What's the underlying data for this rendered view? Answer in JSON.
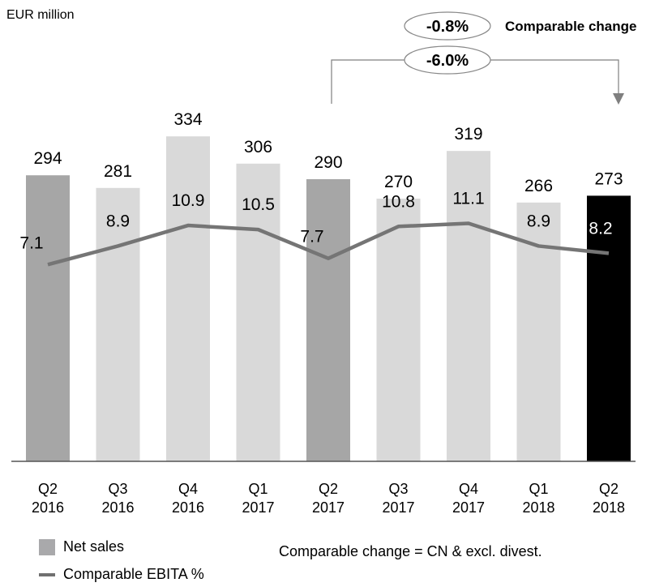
{
  "unit_label": "EUR million",
  "note": "Comparable change = CN & excl. divest.",
  "annotations": {
    "comparable_change_value": "-0.8%",
    "comparable_change_label": "Comparable change",
    "total_change_value": "-6.0%"
  },
  "colors": {
    "highlight_bar": "#a6a6a6",
    "regular_bar": "#d9d9d9",
    "current_bar": "#000000",
    "line": "#757575",
    "axis": "#555555"
  },
  "chart_data": {
    "type": "bar",
    "categories": [
      [
        "Q2",
        "2016"
      ],
      [
        "Q3",
        "2016"
      ],
      [
        "Q4",
        "2016"
      ],
      [
        "Q1",
        "2017"
      ],
      [
        "Q2",
        "2017"
      ],
      [
        "Q3",
        "2017"
      ],
      [
        "Q4",
        "2017"
      ],
      [
        "Q1",
        "2018"
      ],
      [
        "Q2",
        "2018"
      ]
    ],
    "series": [
      {
        "name": "Net sales",
        "type": "bar",
        "values": [
          294,
          281,
          334,
          306,
          290,
          270,
          319,
          266,
          273
        ],
        "bar_styles": [
          "highlight",
          "regular",
          "regular",
          "regular",
          "highlight",
          "regular",
          "regular",
          "regular",
          "current"
        ]
      },
      {
        "name": "Comparable EBITA %",
        "type": "line",
        "values": [
          7.1,
          8.9,
          10.9,
          10.5,
          7.7,
          10.8,
          11.1,
          8.9,
          8.2
        ]
      }
    ],
    "ylim": [
      0,
      360
    ],
    "line_ylim": [
      -12,
      22
    ],
    "legend_position": "bottom-left",
    "grid": false
  }
}
